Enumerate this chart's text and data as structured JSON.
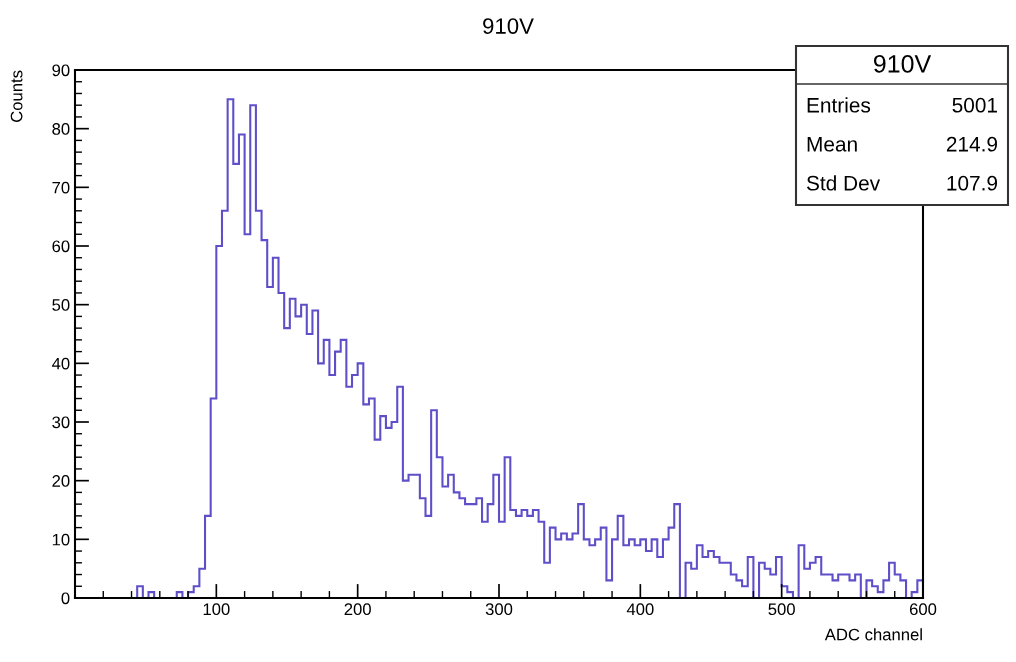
{
  "chart_data": {
    "type": "histogram",
    "title": "910V",
    "xlabel": "ADC channel",
    "ylabel": "Counts",
    "bins": [
      0,
      4,
      8,
      12,
      16,
      20,
      24,
      28,
      32,
      36,
      40,
      44,
      48,
      52,
      56,
      60,
      64,
      68,
      72,
      76,
      80,
      84,
      88,
      92,
      96,
      100,
      104,
      108,
      112,
      116,
      120,
      124,
      128,
      132,
      136,
      140,
      144,
      148,
      152,
      156,
      160,
      164,
      168,
      172,
      176,
      180,
      184,
      188,
      192,
      196,
      200,
      204,
      208,
      212,
      216,
      220,
      224,
      228,
      232,
      236,
      240,
      244,
      248,
      252,
      256,
      260,
      264,
      268,
      272,
      276,
      280,
      284,
      288,
      292,
      296,
      300,
      304,
      308,
      312,
      316,
      320,
      324,
      328,
      332,
      336,
      340,
      344,
      348,
      352,
      356,
      360,
      364,
      368,
      372,
      376,
      380,
      384,
      388,
      392,
      396,
      400,
      404,
      408,
      412,
      416,
      420,
      424,
      428,
      432,
      436,
      440,
      444,
      448,
      452,
      456,
      460,
      464,
      468,
      472,
      476,
      480,
      484,
      488,
      492,
      496,
      500,
      504,
      508,
      512,
      516,
      520,
      524,
      528,
      532,
      536,
      540,
      544,
      548,
      552,
      556,
      560,
      564,
      568,
      572,
      576,
      580,
      584,
      588,
      592,
      596,
      600
    ],
    "values": [
      0,
      0,
      0,
      0,
      0,
      0,
      0,
      0,
      0,
      0,
      0,
      2,
      0,
      1,
      0,
      0,
      0,
      0,
      1,
      0,
      1,
      2,
      5,
      14,
      34,
      60,
      66,
      85,
      74,
      79,
      62,
      84,
      66,
      61,
      53,
      58,
      52,
      46,
      51,
      48,
      50,
      45,
      49,
      40,
      44,
      38,
      42,
      44,
      36,
      38,
      40,
      33,
      34,
      27,
      31,
      29,
      30,
      36,
      20,
      21,
      21,
      17,
      14,
      32,
      24,
      19,
      21,
      18,
      17,
      16,
      16,
      17,
      13,
      16,
      21,
      13,
      24,
      15,
      14,
      15,
      14,
      15,
      13,
      6,
      12,
      10,
      11,
      10,
      11,
      16,
      10,
      9,
      10,
      12,
      3,
      10,
      14,
      9,
      10,
      9,
      10,
      8,
      10,
      7,
      10,
      12,
      16,
      0,
      6,
      5,
      9,
      7,
      8,
      7,
      6,
      6,
      4,
      3,
      2,
      7,
      0,
      6,
      5,
      4,
      7,
      2,
      1,
      0,
      9,
      5,
      6,
      7,
      4,
      4,
      3,
      4,
      4,
      3,
      4,
      0,
      3,
      2,
      1,
      3,
      6,
      4,
      3,
      0,
      1,
      3
    ],
    "color": "#5e4fc9",
    "xlim": [
      0,
      600
    ],
    "xticks": [
      100,
      200,
      300,
      400,
      500,
      600
    ],
    "ylim": [
      0,
      90
    ],
    "yticks": [
      0,
      10,
      20,
      30,
      40,
      50,
      60,
      70,
      80,
      90
    ],
    "grid": false,
    "annotations": [
      "910V",
      "Entries",
      "5001",
      "Mean",
      "214.9",
      "Std Dev",
      "107.9"
    ]
  }
}
